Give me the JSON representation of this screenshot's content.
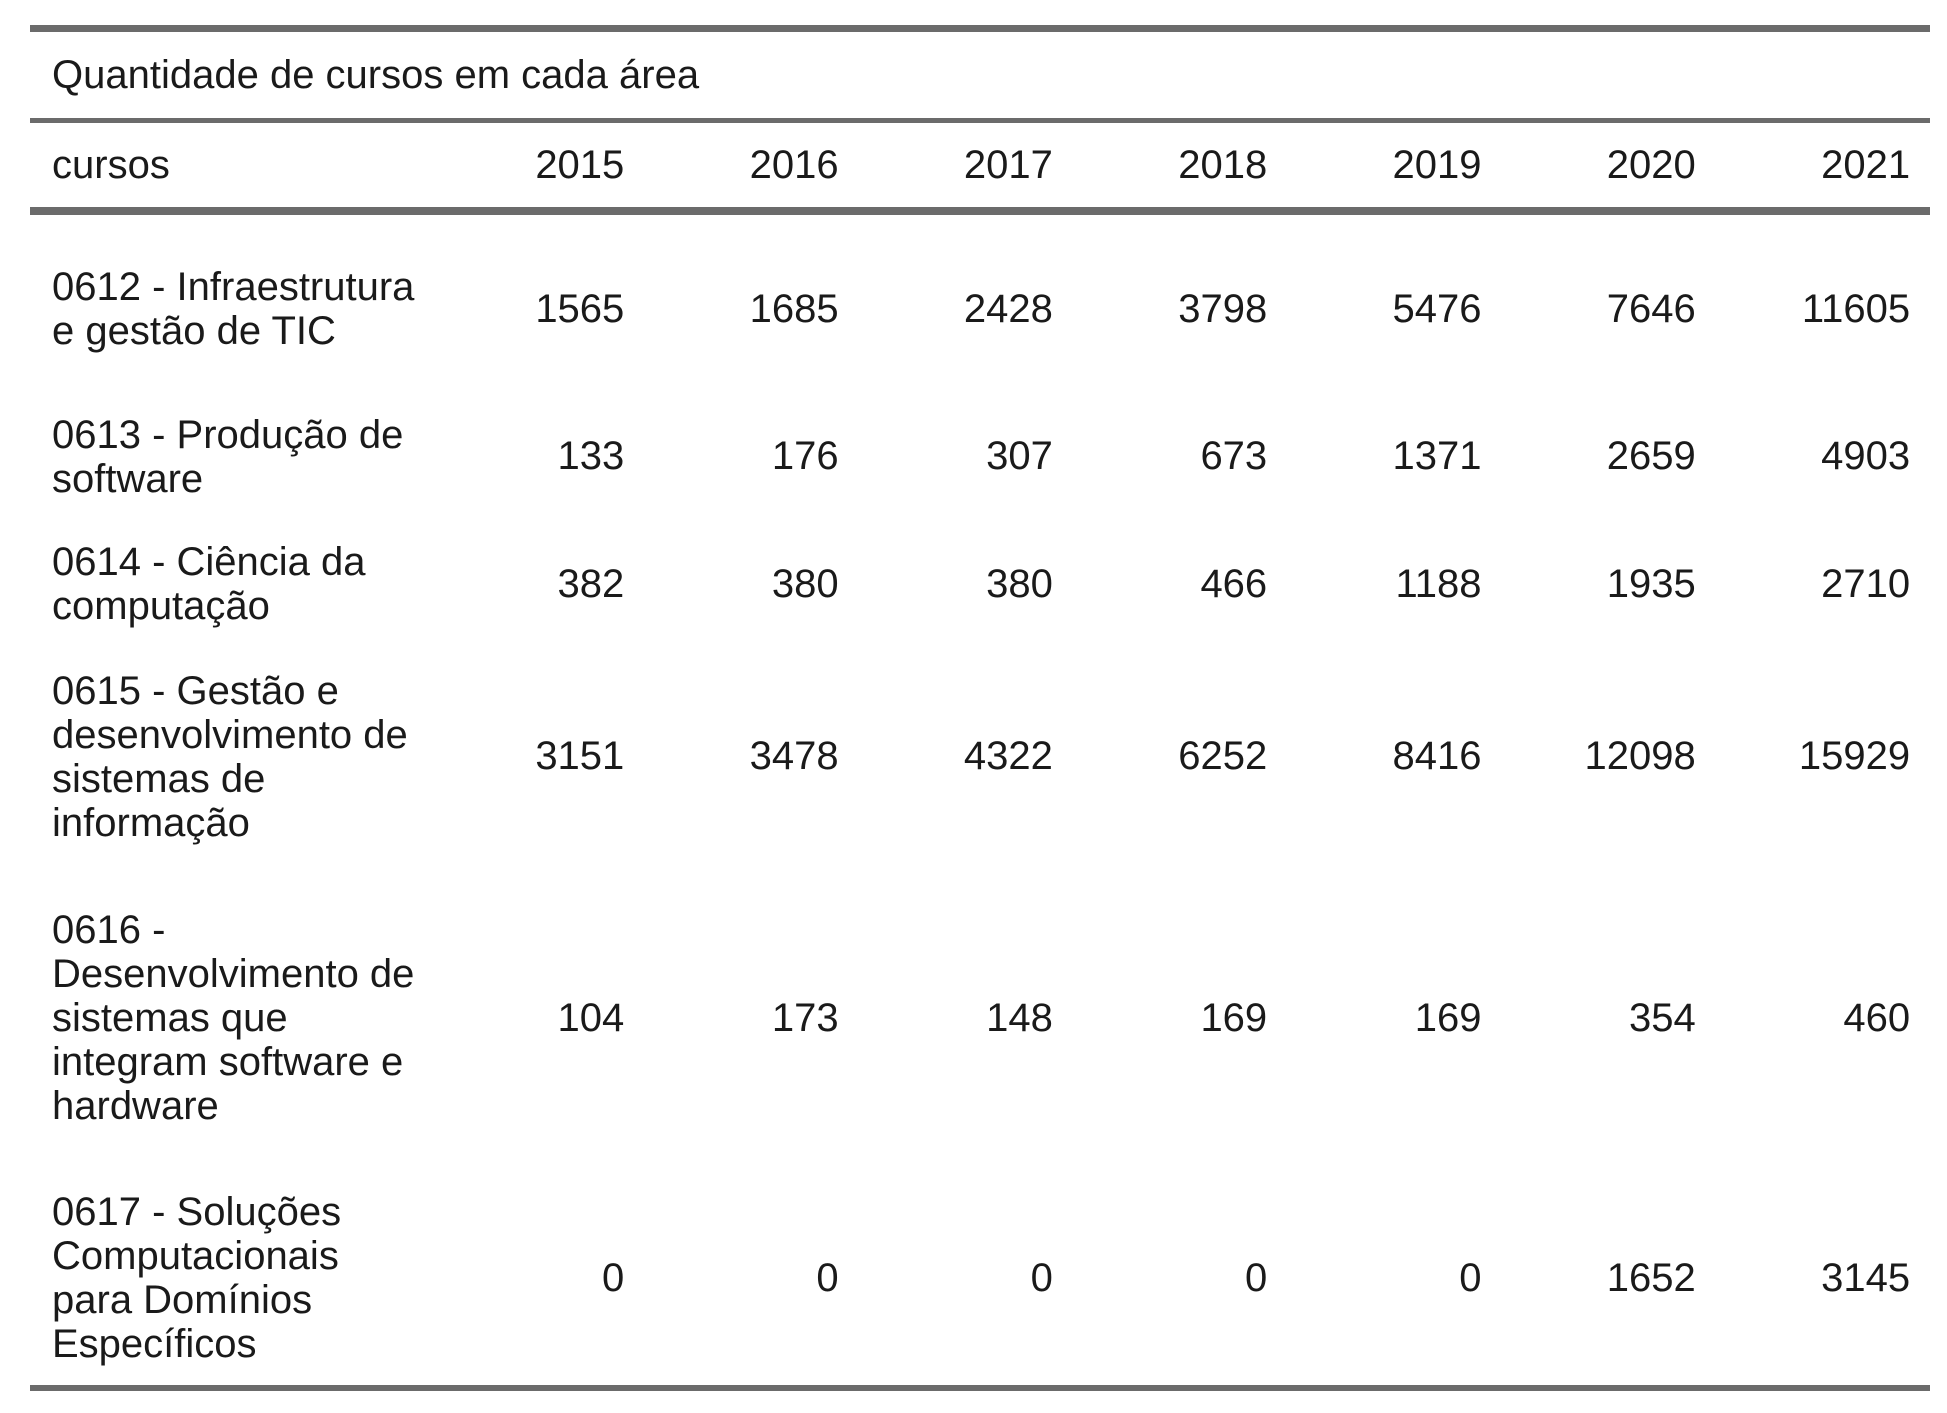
{
  "chart_data": {
    "type": "table",
    "title": "Quantidade de cursos em cada área",
    "columns": [
      "cursos",
      "2015",
      "2016",
      "2017",
      "2018",
      "2019",
      "2020",
      "2021"
    ],
    "rows": [
      {
        "name": "0612 - Infraestrutura e gestão de TIC",
        "values": [
          "1565",
          "1685",
          "2428",
          "3798",
          "5476",
          "7646",
          "11605"
        ]
      },
      {
        "name": "0613 - Produção de software",
        "values": [
          "133",
          "176",
          "307",
          "673",
          "1371",
          "2659",
          "4903"
        ]
      },
      {
        "name": "0614 - Ciência da computação",
        "values": [
          "382",
          "380",
          "380",
          "466",
          "1188",
          "1935",
          "2710"
        ]
      },
      {
        "name": "0615 - Gestão e desenvolvimento de sistemas de informação",
        "values": [
          "3151",
          "3478",
          "4322",
          "6252",
          "8416",
          "12098",
          "15929"
        ]
      },
      {
        "name": "0616 - Desenvolvimento de sistemas que integram software e hardware",
        "values": [
          "104",
          "173",
          "148",
          "169",
          "169",
          "354",
          "460"
        ]
      },
      {
        "name": "0617 - Soluções Computacionais para Domínios Específicos",
        "values": [
          "0",
          "0",
          "0",
          "0",
          "0",
          "1652",
          "3145"
        ]
      }
    ]
  }
}
